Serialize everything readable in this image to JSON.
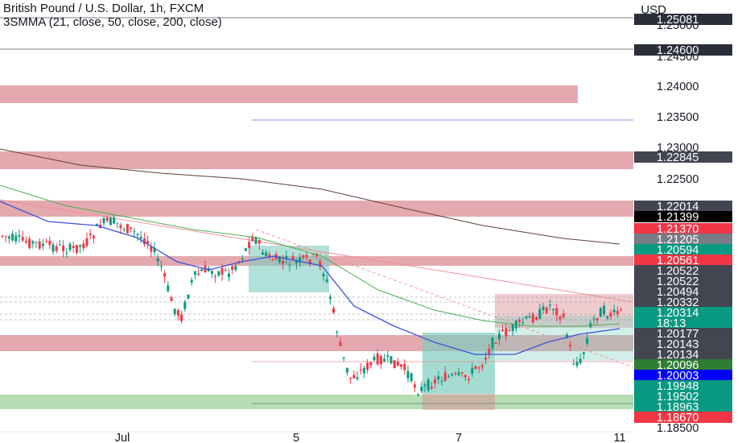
{
  "header": {
    "title": "British Pound / U.S. Dollar, 1h, FXCM",
    "indicator": "3SMMA (21, close, 50, close, 200, close)"
  },
  "axis": {
    "currency": "USD",
    "price_ticks": [
      "1.25000",
      "1.24500",
      "1.24000",
      "1.23500",
      "1.23000",
      "1.22500",
      "1.18500"
    ],
    "time_ticks": [
      "Jul",
      "5",
      "7",
      "11"
    ]
  },
  "price_tags": [
    {
      "value": "1.25081",
      "color": "#2a2e39"
    },
    {
      "value": "1.24600",
      "color": "#2a2e39"
    },
    {
      "value": "1.22845",
      "color": "#434651"
    },
    {
      "value": "1.22014",
      "color": "#434651"
    },
    {
      "value": "1.21399",
      "color": "#000000"
    },
    {
      "value": "1.21370",
      "color": "#f23645"
    },
    {
      "value": "1.21205",
      "color": "#787b86"
    },
    {
      "value": "1.20594",
      "color": "#089981"
    },
    {
      "value": "1.20561",
      "color": "#f23645"
    },
    {
      "value": "1.20522",
      "color": "#434651"
    },
    {
      "value": "1.20522",
      "color": "#434651"
    },
    {
      "value": "1.20494",
      "color": "#434651"
    },
    {
      "value": "1.20332",
      "color": "#434651"
    },
    {
      "value": "1.20314",
      "color": "#089981"
    },
    {
      "value": "18:13",
      "color": "#089981"
    },
    {
      "value": "1.20177",
      "color": "#434651"
    },
    {
      "value": "1.20143",
      "color": "#434651"
    },
    {
      "value": "1.20134",
      "color": "#434651"
    },
    {
      "value": "1.20096",
      "color": "#2e7d32"
    },
    {
      "value": "1.20003",
      "color": "#0000ff"
    },
    {
      "value": "1.19948",
      "color": "#089981"
    },
    {
      "value": "1.19502",
      "color": "#089981"
    },
    {
      "value": "1.18963",
      "color": "#089981"
    },
    {
      "value": "1.18670",
      "color": "#f23645"
    }
  ],
  "colors": {
    "bull": "#089981",
    "bear": "#f23645",
    "zone_red": "#d98c94",
    "zone_green": "#a8d8a8",
    "zone_teal": "#7fcdbf",
    "ma21": "#3f51d6",
    "ma50": "#4caf50",
    "ma200": "#5d4037"
  }
}
